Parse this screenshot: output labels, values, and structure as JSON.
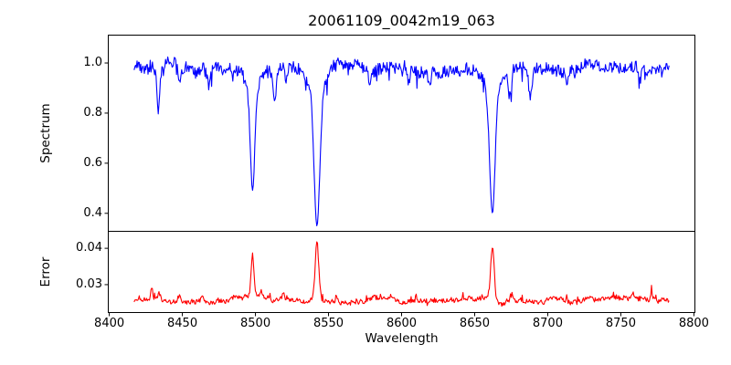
{
  "figure": {
    "title": "20061109_0042m19_063",
    "background": "#ffffff",
    "text_color": "#000000",
    "axis_color": "#000000"
  },
  "chart_data": [
    {
      "type": "line",
      "name": "spectrum",
      "ylabel": "Spectrum",
      "line_color": "#0000ff",
      "xlim": [
        8399,
        8801
      ],
      "ylim": [
        0.33,
        1.113
      ],
      "yticks": [
        {
          "label": "1.0",
          "value": 1.0
        },
        {
          "label": "0.8",
          "value": 0.8
        },
        {
          "label": "0.6",
          "value": 0.6
        },
        {
          "label": "0.4",
          "value": 0.4
        }
      ],
      "x_data_range": [
        8417,
        8783
      ],
      "x_step": 0.5,
      "continuum": 0.975,
      "noise": {
        "white_amp": 0.045,
        "walk_amp": 0.012,
        "spike_prob": 0.05,
        "spike_amp": 0.06,
        "seed": 12345
      },
      "absorption_lines": [
        {
          "center": 8433.5,
          "depth": 0.17,
          "sigma": 1.1
        },
        {
          "center": 8448,
          "depth": 0.07,
          "sigma": 0.9
        },
        {
          "center": 8468,
          "depth": 0.07,
          "sigma": 0.9
        },
        {
          "center": 8498.0,
          "depth": 0.39,
          "sigma": 1.5,
          "wing_depth": 0.1,
          "wing_sigma": 4.0
        },
        {
          "center": 8513,
          "depth": 0.13,
          "sigma": 1.1
        },
        {
          "center": 8521,
          "depth": 0.06,
          "sigma": 0.9
        },
        {
          "center": 8542.1,
          "depth": 0.51,
          "sigma": 1.9,
          "wing_depth": 0.12,
          "wing_sigma": 5.5
        },
        {
          "center": 8578,
          "depth": 0.05,
          "sigma": 0.9
        },
        {
          "center": 8605,
          "depth": 0.05,
          "sigma": 0.9
        },
        {
          "center": 8619,
          "depth": 0.06,
          "sigma": 0.9
        },
        {
          "center": 8662.1,
          "depth": 0.47,
          "sigma": 1.8,
          "wing_depth": 0.11,
          "wing_sigma": 5.0
        },
        {
          "center": 8674,
          "depth": 0.1,
          "sigma": 1.0
        },
        {
          "center": 8688,
          "depth": 0.11,
          "sigma": 1.1
        },
        {
          "center": 8713,
          "depth": 0.05,
          "sigma": 0.9
        },
        {
          "center": 8763,
          "depth": 0.05,
          "sigma": 0.9
        }
      ]
    },
    {
      "type": "line",
      "name": "error",
      "ylabel": "Error",
      "xlabel": "Wavelength",
      "line_color": "#ff0000",
      "xlim": [
        8399,
        8801
      ],
      "ylim": [
        0.0222,
        0.0448
      ],
      "yticks": [
        {
          "label": "0.04",
          "value": 0.04
        },
        {
          "label": "0.03",
          "value": 0.03
        }
      ],
      "xticks": [
        {
          "label": "8400",
          "value": 8400
        },
        {
          "label": "8450",
          "value": 8450
        },
        {
          "label": "8500",
          "value": 8500
        },
        {
          "label": "8550",
          "value": 8550
        },
        {
          "label": "8600",
          "value": 8600
        },
        {
          "label": "8650",
          "value": 8650
        },
        {
          "label": "8700",
          "value": 8700
        },
        {
          "label": "8750",
          "value": 8750
        },
        {
          "label": "8800",
          "value": 8800
        }
      ],
      "x_data_range": [
        8417,
        8783
      ],
      "x_step": 0.5,
      "baseline": 0.0257,
      "noise": {
        "white_amp": 0.0012,
        "walk_amp": 0.0005,
        "spike_prob": 0.06,
        "spike_amp": 0.0018,
        "seed": 777
      },
      "error_peaks": [
        {
          "center": 8429,
          "height": 0.003,
          "sigma": 0.8
        },
        {
          "center": 8434,
          "height": 0.0018,
          "sigma": 0.8
        },
        {
          "center": 8448,
          "height": 0.0012,
          "sigma": 0.7
        },
        {
          "center": 8464,
          "height": 0.0013,
          "sigma": 0.8
        },
        {
          "center": 8498.0,
          "height": 0.011,
          "sigma": 1.0
        },
        {
          "center": 8504,
          "height": 0.002,
          "sigma": 0.8
        },
        {
          "center": 8519,
          "height": 0.0018,
          "sigma": 0.8
        },
        {
          "center": 8542.1,
          "height": 0.016,
          "sigma": 1.2
        },
        {
          "center": 8556,
          "height": 0.0013,
          "sigma": 0.8
        },
        {
          "center": 8662.1,
          "height": 0.015,
          "sigma": 1.2
        },
        {
          "center": 8676,
          "height": 0.0015,
          "sigma": 0.9
        },
        {
          "center": 8758,
          "height": 0.0013,
          "sigma": 0.8
        },
        {
          "center": 8771,
          "height": 0.0023,
          "sigma": 0.8
        }
      ]
    }
  ]
}
